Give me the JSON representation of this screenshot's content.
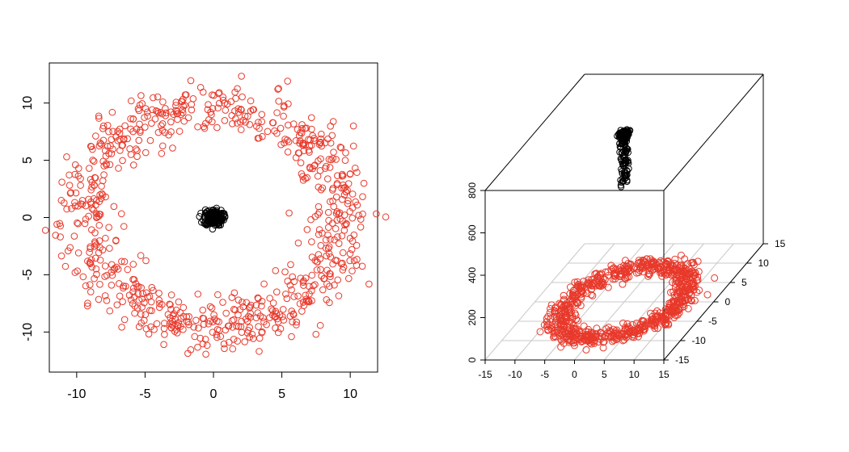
{
  "chart_data": [
    {
      "type": "scatter",
      "title": "",
      "xlabel": "",
      "ylabel": "",
      "xlim": [
        -12,
        12
      ],
      "ylim": [
        -13.5,
        13.5
      ],
      "x_ticks": [
        -10,
        -5,
        0,
        5,
        10
      ],
      "y_ticks": [
        -10,
        -5,
        0,
        5,
        10
      ],
      "grid": false,
      "series": [
        {
          "color": "#e8392b",
          "marker": "open-circle",
          "shape": "ring",
          "approx_count": 800,
          "center": [
            0,
            0
          ],
          "ring_radius_x": 9.5,
          "ring_radius_y": 9.5,
          "ring_spread": 2.5
        },
        {
          "color": "#000000",
          "marker": "open-circle",
          "shape": "cluster",
          "approx_count": 200,
          "center": [
            0,
            0
          ],
          "spread": 0.35
        }
      ]
    },
    {
      "type": "scatter",
      "projection": "3d",
      "title": "",
      "x_ticks": [
        -15,
        -10,
        -5,
        0,
        5,
        10,
        15
      ],
      "y_ticks": [
        -15,
        -10,
        -5,
        0,
        5,
        10,
        15
      ],
      "z_ticks": [
        0,
        200,
        400,
        600,
        800
      ],
      "xlim": [
        -15,
        15
      ],
      "ylim": [
        -15,
        15
      ],
      "zlim": [
        0,
        800
      ],
      "grid": true,
      "series": [
        {
          "color": "#e8392b",
          "marker": "open-circle",
          "shape": "ring",
          "approx_count": 800,
          "z": 0
        },
        {
          "color": "#000000",
          "marker": "open-circle",
          "shape": "vertical-column",
          "approx_count": 200,
          "z_range": [
            550,
            800
          ]
        }
      ]
    }
  ]
}
